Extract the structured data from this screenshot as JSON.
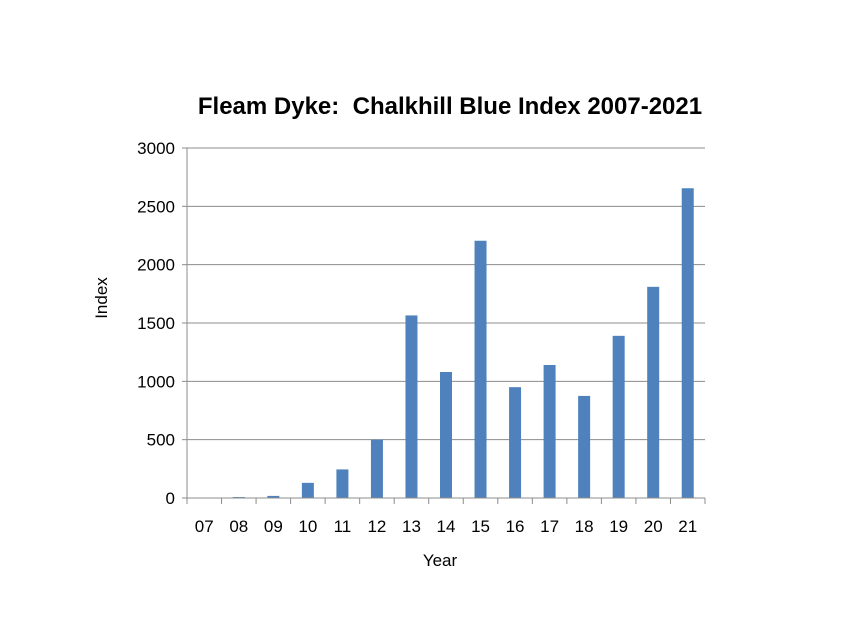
{
  "chart_data": {
    "type": "bar",
    "title": "Fleam Dyke:  Chalkhill Blue Index 2007-2021",
    "xlabel": "Year",
    "ylabel": "Index",
    "ylim": [
      0,
      3000
    ],
    "yticks": [
      0,
      500,
      1000,
      1500,
      2000,
      2500,
      3000
    ],
    "grid": true,
    "legend": "none",
    "categories": [
      "07",
      "08",
      "09",
      "10",
      "11",
      "12",
      "13",
      "14",
      "15",
      "16",
      "17",
      "18",
      "19",
      "20",
      "21"
    ],
    "values": [
      0,
      8,
      18,
      130,
      245,
      500,
      1565,
      1080,
      2205,
      950,
      1140,
      875,
      1390,
      1810,
      2655
    ],
    "bar_color": "#4F81BD",
    "grid_color": "#8C8C8C"
  }
}
